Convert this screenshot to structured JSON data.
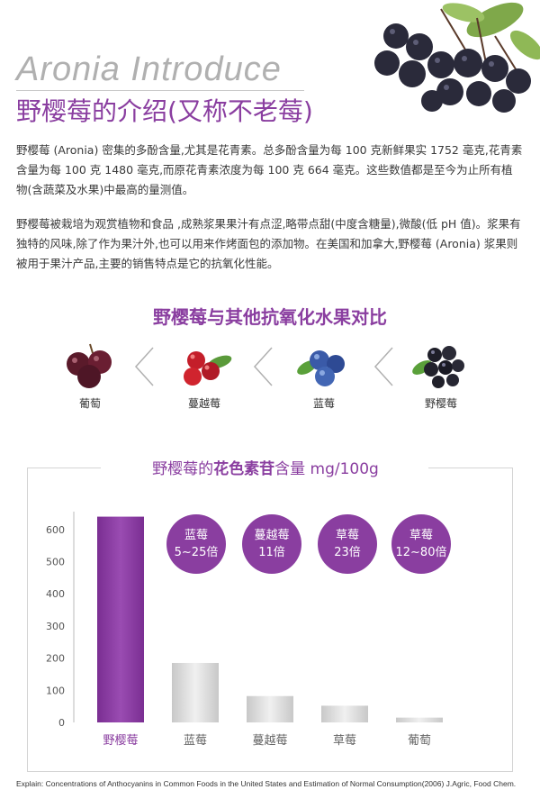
{
  "header": {
    "title_en": "Aronia Introduce",
    "title_cn": "野樱莓的介绍(又称不老莓)"
  },
  "intro": {
    "paragraph1": "野樱莓 (Aronia) 密集的多酚含量,尤其是花青素。总多酚含量为每 100 克新鲜果实 1752 毫克,花青素含量为每 100 克 1480 毫克,而原花青素浓度为每 100 克 664 毫克。这些数值都是至今为止所有植物(含蔬菜及水果)中最高的量测值。",
    "paragraph2": "野樱莓被栽培为观赏植物和食品 ,成熟浆果果汁有点涩,略带点甜(中度含糖量),微酸(低 pH 值)。浆果有独特的风味,除了作为果汁外,也可以用来作烤面包的添加物。在美国和加拿大,野樱莓 (Aronia) 浆果则被用于果汁产品,主要的销售特点是它的抗氧化性能。"
  },
  "comparison": {
    "title": "野樱莓与其他抗氧化水果对比",
    "fruits": [
      {
        "label": "葡萄",
        "icon": "grape-icon"
      },
      {
        "label": "蔓越莓",
        "icon": "cranberry-icon"
      },
      {
        "label": "蓝莓",
        "icon": "blueberry-icon"
      },
      {
        "label": "野樱莓",
        "icon": "aronia-icon"
      }
    ]
  },
  "chart_title": {
    "prefix": "野樱莓的",
    "bold": "花色素苷",
    "suffix": "含量 mg/100g"
  },
  "chart_data": {
    "type": "bar",
    "title": "野樱莓的花色素苷含量 mg/100g",
    "categories": [
      "野樱莓",
      "蓝莓",
      "蔓越莓",
      "草莓",
      "葡萄"
    ],
    "values": [
      640,
      185,
      82,
      52,
      15
    ],
    "ylim": [
      0,
      650
    ],
    "yticks": [
      0,
      100,
      200,
      300,
      400,
      500,
      600
    ],
    "bar_colors": [
      "#8a3ea0",
      "#d8d8d8",
      "#d8d8d8",
      "#d8d8d8",
      "#d8d8d8"
    ],
    "callouts": [
      {
        "name": "蓝莓",
        "ratio": "5~25倍"
      },
      {
        "name": "蔓越莓",
        "ratio": "11倍"
      },
      {
        "name": "草莓",
        "ratio": "23倍"
      },
      {
        "name": "草莓",
        "ratio": "12~80倍"
      }
    ]
  },
  "footnote": "Explain: Concentrations of Anthocyanins in Common Foods in the United States and Estimation of Normal Consumption(2006) J.Agric, Food Chem.",
  "colors": {
    "accent": "#8a3ea0",
    "gray_bar": "#d8d8d8",
    "title_gray": "#b0b0b0"
  }
}
